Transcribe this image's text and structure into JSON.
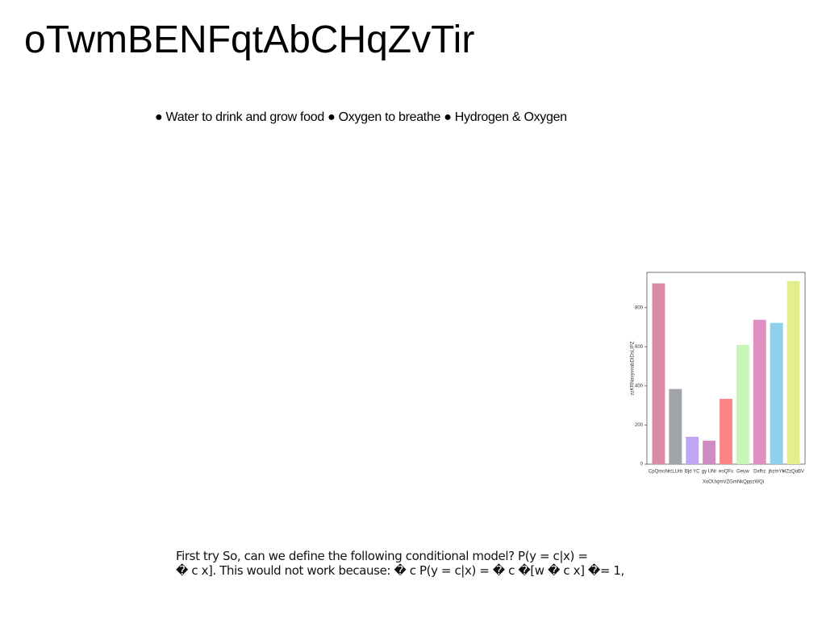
{
  "header": {
    "title": "oTwmBENFqtAbCHqZvTir"
  },
  "bullets": "● Water to drink and grow food ● Oxygen to breathe ● Hydrogen & Oxygen",
  "body": {
    "lines": [
      "First try So, can we define the following conditional model? P(y = c|x) =",
      "� c x]. This would not work because: � c P(y = c|x) = � c �[w � c x] �= 1,"
    ]
  },
  "chart_data": {
    "type": "bar",
    "x_label": "XoOUxjmVZGmNkQppzWQi",
    "y_label": "zzKRNavyvoabDIDsLIPZ",
    "categories": [
      "CpQmoN",
      "rcLUrb",
      "Bjd YC",
      "gy UNr",
      "eoQFx",
      "Geuw",
      "Dxfhz",
      "jbzmYs",
      "HZzQoBV"
    ],
    "values": [
      924,
      384,
      140,
      120,
      334,
      610,
      738,
      722,
      936
    ],
    "colors": [
      "#d98aa6",
      "#a0a3a8",
      "#c0a5f0",
      "#d08bc0",
      "#ff8585",
      "#c8f5b8",
      "#e090c0",
      "#8ecfee",
      "#e2ef8c"
    ],
    "ylim": [
      0,
      980
    ],
    "yticks": [
      0,
      200,
      400,
      600,
      800
    ]
  }
}
